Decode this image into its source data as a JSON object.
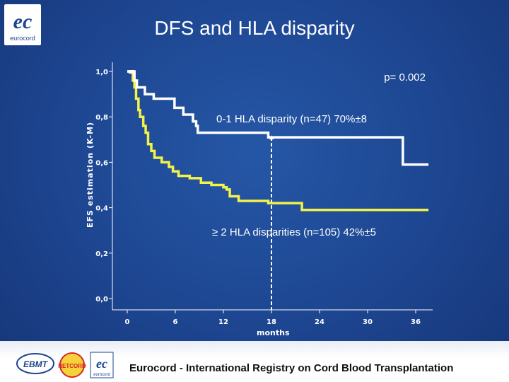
{
  "header": {
    "title": "DFS and HLA disparity",
    "logo_text": "eurocord"
  },
  "footer": {
    "text": "Eurocord - International Registry on Cord Blood Transplantation",
    "logo_ebmt": "EBMT",
    "logo_netcord": "NETCORD",
    "logo_eurocord": "eurocord"
  },
  "colors": {
    "background": "#1d4590",
    "curve_low": "#ffffff",
    "curve_high": "#f2f24a",
    "axis": "#ffffff"
  },
  "chart_data": {
    "type": "line",
    "title": "DFS and HLA disparity",
    "xlabel": "months",
    "ylabel": "EFS estimation (K-M)",
    "xlim": [
      0,
      36
    ],
    "ylim": [
      0,
      1
    ],
    "x_ticks": [
      0,
      6,
      12,
      18,
      24,
      30,
      36
    ],
    "x_tick_labels": [
      "0",
      "6",
      "12",
      "18",
      "24",
      "30",
      "36"
    ],
    "y_ticks": [
      0,
      0.2,
      0.4,
      0.6,
      0.8,
      1.0
    ],
    "y_tick_labels": [
      "0,0",
      "0,2",
      "0,4",
      "0,6",
      "0,8",
      "1,0"
    ],
    "pvalue": "p= 0.002",
    "reference_x": 18,
    "series": [
      {
        "name": "0-1 HLA disparity (n=47) 70%±8",
        "color": "#ffffff",
        "step_points": [
          [
            0,
            1.0
          ],
          [
            0.6,
            1.0
          ],
          [
            0.9,
            0.96
          ],
          [
            1.2,
            0.93
          ],
          [
            2.2,
            0.9
          ],
          [
            3.3,
            0.88
          ],
          [
            5.9,
            0.84
          ],
          [
            7.0,
            0.81
          ],
          [
            8.2,
            0.78
          ],
          [
            8.6,
            0.76
          ],
          [
            8.8,
            0.73
          ],
          [
            17.4,
            0.73
          ],
          [
            17.6,
            0.71
          ],
          [
            34.2,
            0.71
          ],
          [
            34.4,
            0.59
          ],
          [
            37.6,
            0.59
          ]
        ]
      },
      {
        "name": "≥ 2 HLA disparities (n=105) 42%±5",
        "color": "#f2f24a",
        "step_points": [
          [
            0,
            1.0
          ],
          [
            0.7,
            0.96
          ],
          [
            0.9,
            0.93
          ],
          [
            1.1,
            0.88
          ],
          [
            1.4,
            0.83
          ],
          [
            1.6,
            0.8
          ],
          [
            2.0,
            0.76
          ],
          [
            2.3,
            0.73
          ],
          [
            2.6,
            0.68
          ],
          [
            3.0,
            0.65
          ],
          [
            3.4,
            0.62
          ],
          [
            4.3,
            0.6
          ],
          [
            5.2,
            0.58
          ],
          [
            5.7,
            0.56
          ],
          [
            6.4,
            0.54
          ],
          [
            7.8,
            0.53
          ],
          [
            9.2,
            0.51
          ],
          [
            10.5,
            0.5
          ],
          [
            12.0,
            0.49
          ],
          [
            12.4,
            0.48
          ],
          [
            12.8,
            0.45
          ],
          [
            13.9,
            0.43
          ],
          [
            16.7,
            0.43
          ],
          [
            17.6,
            0.42
          ],
          [
            20.8,
            0.42
          ],
          [
            21.8,
            0.39
          ],
          [
            37.6,
            0.39
          ]
        ]
      }
    ]
  }
}
